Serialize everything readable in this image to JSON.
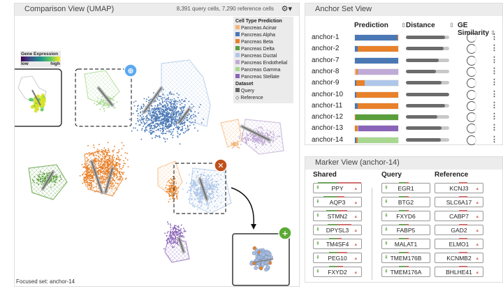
{
  "comparison": {
    "title": "Comparison View (UMAP)",
    "stats": "8,391 query cells, 7,290 reference cells",
    "settings_icon": "gear-icon",
    "focused": "Focused set: anchor-14",
    "legend": {
      "title": "Cell Type Prediction",
      "items": [
        {
          "label": "Pancreas Acinar",
          "color": "#f5b57a"
        },
        {
          "label": "Pancreas Alpha",
          "color": "#4a78b5"
        },
        {
          "label": "Pancreas Beta",
          "color": "#e8812a"
        },
        {
          "label": "Pancreas Delta",
          "color": "#5a9e3c"
        },
        {
          "label": "Pancreas Ductal",
          "color": "#aec6e8"
        },
        {
          "label": "Pancreas Endothelial",
          "color": "#c0aad6"
        },
        {
          "label": "Pancreas Gamma",
          "color": "#a8d890"
        },
        {
          "label": "Pancreas Stellate",
          "color": "#8a64b8"
        }
      ],
      "dataset_title": "Dataset",
      "query": "Query",
      "reference": "Reference"
    },
    "gene_expression": {
      "title": "Gene Expression",
      "low": "low",
      "high": "high"
    }
  },
  "anchor_set": {
    "title": "Anchor Set View",
    "columns": {
      "prediction": "Prediction",
      "distance": "Distance",
      "ge": "GE Similarity"
    },
    "rows": [
      {
        "name": "anchor-1",
        "pred": [
          [
            "#4a78b5",
            0.98
          ],
          [
            "#e8812a",
            0.02
          ]
        ],
        "distance": 0.9,
        "ge": 0.85
      },
      {
        "name": "anchor-2",
        "pred": [
          [
            "#4a78b5",
            0.07
          ],
          [
            "#e8812a",
            0.93
          ]
        ],
        "distance": 0.87,
        "ge": 0.8
      },
      {
        "name": "anchor-7",
        "pred": [
          [
            "#4a78b5",
            1
          ]
        ],
        "distance": 0.75,
        "ge": 0.8
      },
      {
        "name": "anchor-8",
        "pred": [
          [
            "#f5b57a",
            0.03
          ],
          [
            "#e8812a",
            0.03
          ],
          [
            "#c0aad6",
            0.94
          ]
        ],
        "distance": 0.7,
        "ge": 0.8
      },
      {
        "name": "anchor-9",
        "pred": [
          [
            "#4a78b5",
            0.04
          ],
          [
            "#e8812a",
            0.19
          ],
          [
            "#aec6e8",
            0.77
          ]
        ],
        "distance": 0.83,
        "ge": 0.8
      },
      {
        "name": "anchor-10",
        "pred": [
          [
            "#4a78b5",
            0.03
          ],
          [
            "#e8812a",
            0.97
          ]
        ],
        "distance": 1.0,
        "ge": 0.8
      },
      {
        "name": "anchor-11",
        "pred": [
          [
            "#4a78b5",
            0.06
          ],
          [
            "#e8812a",
            0.94
          ]
        ],
        "distance": 0.9,
        "ge": 0.8
      },
      {
        "name": "anchor-12",
        "pred": [
          [
            "#e8812a",
            0.02
          ],
          [
            "#5a9e3c",
            0.98
          ]
        ],
        "distance": 0.73,
        "ge": 0.8
      },
      {
        "name": "anchor-13",
        "pred": [
          [
            "#e8812a",
            0.06
          ],
          [
            "#aec6e8",
            0.02
          ],
          [
            "#8a64b8",
            0.92
          ]
        ],
        "distance": 0.83,
        "ge": 0.8
      },
      {
        "name": "anchor-14",
        "pred": [
          [
            "#4a78b5",
            0.03
          ],
          [
            "#e8812a",
            0.03
          ],
          [
            "#a8d890",
            0.94
          ]
        ],
        "distance": 0.8,
        "ge": 0.8
      }
    ]
  },
  "marker": {
    "title": "Marker View (anchor-14)",
    "shared_label": "Shared",
    "query_label": "Query",
    "reference_label": "Reference",
    "shared": [
      "PPY",
      "AQP3",
      "STMN2",
      "DPYSL3",
      "TM4SF4",
      "PEG10",
      "FXYD2"
    ],
    "query": [
      "EGR1",
      "BTG2",
      "FXYD6",
      "FABP5",
      "MALAT1",
      "TMEM176B",
      "TMEM176A"
    ],
    "reference": [
      "KCNJ3",
      "SLC6A17",
      "CABP7",
      "GAD2",
      "ELMO1",
      "KCNMB2",
      "BHLHE41"
    ]
  }
}
